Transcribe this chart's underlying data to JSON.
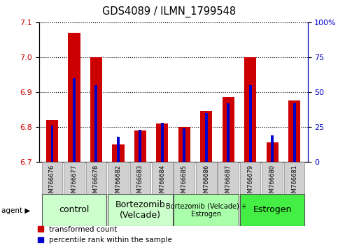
{
  "title": "GDS4089 / ILMN_1799548",
  "samples": [
    "GSM766676",
    "GSM766677",
    "GSM766678",
    "GSM766682",
    "GSM766683",
    "GSM766684",
    "GSM766685",
    "GSM766686",
    "GSM766687",
    "GSM766679",
    "GSM766680",
    "GSM766681"
  ],
  "transformed_count": [
    6.82,
    7.07,
    7.0,
    6.75,
    6.79,
    6.81,
    6.8,
    6.845,
    6.885,
    7.0,
    6.755,
    6.875
  ],
  "percentile_rank": [
    26,
    60,
    55,
    18,
    23,
    28,
    24,
    35,
    42,
    55,
    19,
    42
  ],
  "ylim_left": [
    6.7,
    7.1
  ],
  "ylim_right": [
    0,
    100
  ],
  "yticks_left": [
    6.7,
    6.8,
    6.9,
    7.0,
    7.1
  ],
  "yticks_right": [
    0,
    25,
    50,
    75,
    100
  ],
  "ytick_labels_right": [
    "0",
    "25",
    "50",
    "75",
    "100%"
  ],
  "groups": [
    {
      "label": "control",
      "start": 0,
      "end": 3,
      "color": "#ccffcc",
      "fontsize": 9
    },
    {
      "label": "Bortezomib\n(Velcade)",
      "start": 3,
      "end": 6,
      "color": "#ccffcc",
      "fontsize": 9
    },
    {
      "label": "Bortezomib (Velcade) +\nEstrogen",
      "start": 6,
      "end": 9,
      "color": "#aaffaa",
      "fontsize": 7
    },
    {
      "label": "Estrogen",
      "start": 9,
      "end": 12,
      "color": "#44ee44",
      "fontsize": 9
    }
  ],
  "bar_color": "#cc0000",
  "percentile_color": "#0000cc",
  "bar_width": 0.55,
  "percentile_bar_width": 0.12,
  "legend_items": [
    "transformed count",
    "percentile rank within the sample"
  ]
}
